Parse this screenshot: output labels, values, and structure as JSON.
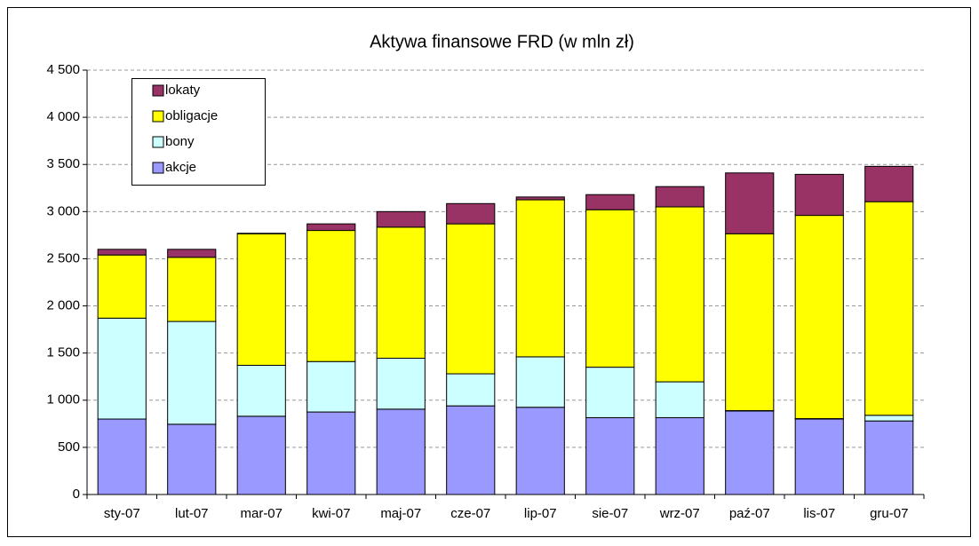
{
  "chart_data": {
    "type": "stacked-bar",
    "title": "Aktywa finansowe FRD (w mln zł)",
    "categories": [
      "sty-07",
      "lut-07",
      "mar-07",
      "kwi-07",
      "maj-07",
      "cze-07",
      "lip-07",
      "sie-07",
      "wrz-07",
      "paź-07",
      "lis-07",
      "gru-07"
    ],
    "series": [
      {
        "name": "akcje",
        "color": "#9999ff",
        "values": [
          800,
          745,
          830,
          875,
          905,
          940,
          925,
          815,
          815,
          885,
          800,
          780
        ]
      },
      {
        "name": "bony",
        "color": "#ccffff",
        "values": [
          1070,
          1090,
          540,
          535,
          540,
          340,
          535,
          535,
          380,
          5,
          5,
          60
        ]
      },
      {
        "name": "obligacje",
        "color": "#ffff00",
        "values": [
          670,
          680,
          1395,
          1390,
          1390,
          1590,
          1665,
          1670,
          1855,
          1875,
          2155,
          2265
        ]
      },
      {
        "name": "lokaty",
        "color": "#993366",
        "values": [
          60,
          85,
          5,
          70,
          165,
          215,
          30,
          160,
          215,
          645,
          435,
          375
        ]
      }
    ],
    "ylim": [
      0,
      4500
    ],
    "yticks": [
      0,
      500,
      {
        "value": 1000,
        "label": "1 000"
      },
      {
        "value": 1500,
        "label": "1 500"
      },
      {
        "value": 2000,
        "label": "2 000"
      },
      {
        "value": 2500,
        "label": "2 500"
      },
      {
        "value": 3000,
        "label": "3 000"
      },
      {
        "value": 3500,
        "label": "3 500"
      },
      {
        "value": 4000,
        "label": "4 000"
      },
      {
        "value": 4500,
        "label": "4 500"
      }
    ],
    "grid": true,
    "legend": "top-left"
  }
}
